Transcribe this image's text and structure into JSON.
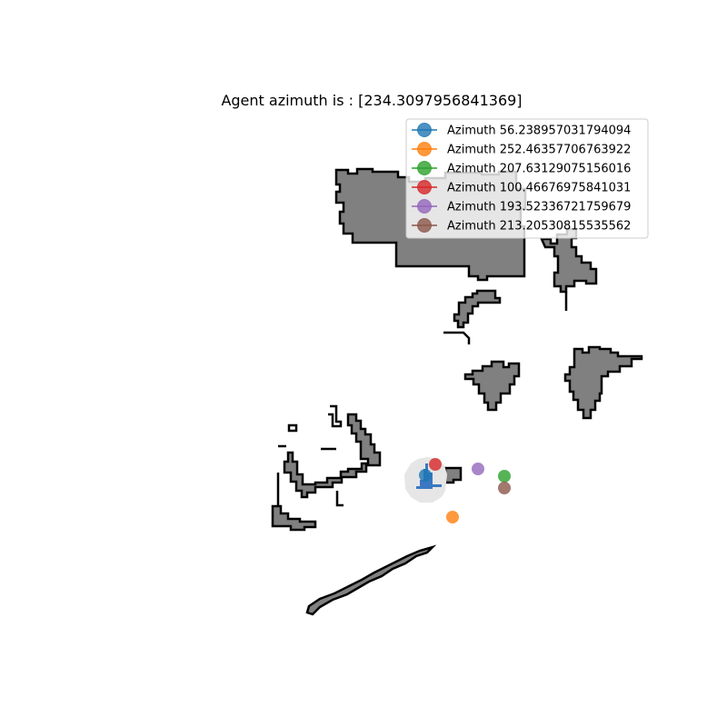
{
  "title": "Agent azimuth is : [234.3097956841369]",
  "legend": {
    "location": "upper-right",
    "entries": [
      {
        "label": "Azimuth 56.238957031794094",
        "color": "#1f77b4"
      },
      {
        "label": "Azimuth 252.46357706763922",
        "color": "#ff7f0e"
      },
      {
        "label": "Azimuth 207.63129075156016",
        "color": "#2ca02c"
      },
      {
        "label": "Azimuth 100.46676975841031",
        "color": "#d62728"
      },
      {
        "label": "Azimuth 193.52336721759679",
        "color": "#9467bd"
      },
      {
        "label": "Azimuth 213.20530815535562",
        "color": "#8c564b"
      }
    ]
  },
  "map": {
    "obstacle_fill": "#808080",
    "edge_color": "#000000",
    "explored_fill": "#e6e6e6",
    "agent_color": "#3a78c2",
    "marker_alpha": 0.8
  }
}
